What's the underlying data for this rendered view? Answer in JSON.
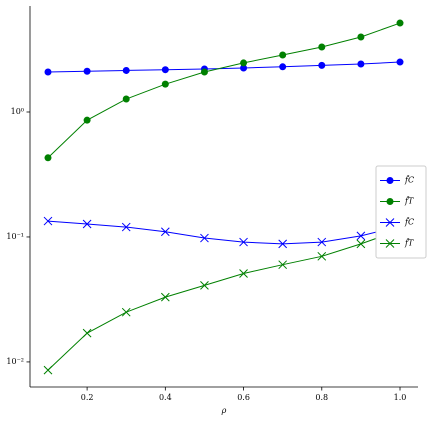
{
  "chart_data": {
    "type": "line",
    "xlabel": "ρ",
    "x": [
      0.1,
      0.2,
      0.3,
      0.4,
      0.5,
      0.6,
      0.7,
      0.8,
      0.9,
      1.0
    ],
    "series": [
      {
        "name": "f̂C",
        "color": "#0000ff",
        "marker": "o",
        "values": [
          2.09,
          2.12,
          2.15,
          2.18,
          2.21,
          2.25,
          2.3,
          2.36,
          2.42,
          2.51
        ]
      },
      {
        "name": "f̂T",
        "color": "#008000",
        "marker": "o",
        "values": [
          0.43,
          0.86,
          1.27,
          1.67,
          2.09,
          2.47,
          2.86,
          3.31,
          3.98,
          5.15
        ]
      },
      {
        "name": "f̂C",
        "color": "#0000ff",
        "marker": "x",
        "values": [
          0.134,
          0.127,
          0.12,
          0.11,
          0.098,
          0.091,
          0.088,
          0.091,
          0.102,
          0.122
        ]
      },
      {
        "name": "f̂T",
        "color": "#008000",
        "marker": "x",
        "values": [
          0.0086,
          0.017,
          0.025,
          0.033,
          0.041,
          0.051,
          0.06,
          0.07,
          0.088,
          0.114
        ]
      }
    ],
    "xlim": [
      0.054,
      1.046
    ],
    "xticks": [
      0.2,
      0.4,
      0.6,
      0.8,
      {
        "value": 1.0,
        "label": "1.0"
      }
    ],
    "ylim": [
      0.0063,
      7.05
    ],
    "ylog": true,
    "yticks": [
      {
        "value": 0.01,
        "label": "10⁻²"
      },
      {
        "value": 0.1,
        "label": "10⁻¹"
      },
      {
        "value": 1,
        "label": "10⁰"
      }
    ],
    "legend": "center right"
  }
}
